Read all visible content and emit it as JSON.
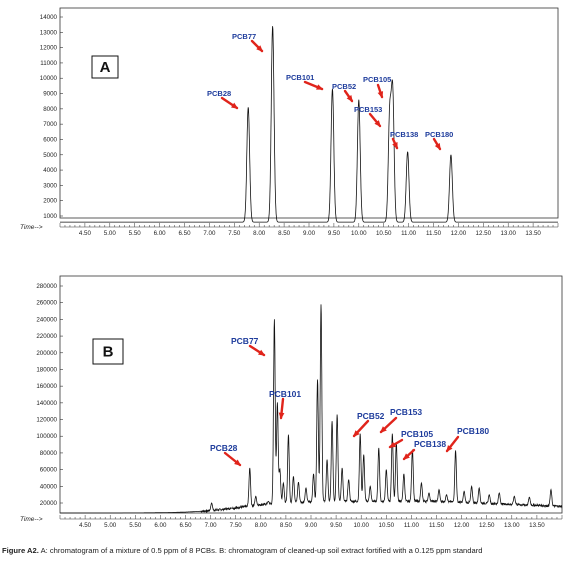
{
  "caption": {
    "label": "Figure A2.",
    "text": "A: chromatogram of a mixture of 0.5 ppm of 8 PCBs. B: chromatogram of cleaned-up soil extract fortified with a 0.125 ppm standard"
  },
  "colors": {
    "arrow": "#e0241b",
    "label": "#1e3c9c",
    "trace": "#111111",
    "frame": "#333333"
  },
  "chart_data": [
    {
      "type": "line",
      "panel_label": "A",
      "x_axis_label": "Time-->",
      "xlim": [
        4.0,
        14.0
      ],
      "x_ticks": [
        "4.50",
        "5.00",
        "5.50",
        "6.00",
        "6.50",
        "7.00",
        "7.50",
        "8.00",
        "8.50",
        "9.00",
        "9.50",
        "10.00",
        "10.50",
        "11.00",
        "11.50",
        "12.00",
        "12.50",
        "13.00",
        "13.50"
      ],
      "ylim": [
        0,
        14400
      ],
      "y_ticks": [
        "1000",
        "2000",
        "3000",
        "4000",
        "5000",
        "6000",
        "7000",
        "8000",
        "9000",
        "10000",
        "11000",
        "12000",
        "13000",
        "14000"
      ],
      "baseline": 600,
      "peaks": [
        {
          "name": "PCB28",
          "rt": 7.78,
          "height": 8100
        },
        {
          "name": "PCB77",
          "rt": 8.27,
          "height": 13400
        },
        {
          "name": "PCB101",
          "rt": 9.47,
          "height": 9300
        },
        {
          "name": "PCB52",
          "rt": 10.0,
          "height": 8600
        },
        {
          "name": "PCB153",
          "rt": 10.62,
          "height": 7500
        },
        {
          "name": "PCB105",
          "rt": 10.68,
          "height": 9000
        },
        {
          "name": "PCB138",
          "rt": 10.98,
          "height": 5200
        },
        {
          "name": "PCB180",
          "rt": 11.85,
          "height": 5000
        }
      ]
    },
    {
      "type": "line",
      "panel_label": "B",
      "x_axis_label": "Time-->",
      "xlim": [
        4.0,
        14.0
      ],
      "x_ticks": [
        "4.50",
        "5.00",
        "5.50",
        "6.00",
        "6.50",
        "7.00",
        "7.50",
        "8.00",
        "8.50",
        "9.00",
        "9.50",
        "10.00",
        "10.50",
        "11.00",
        "11.50",
        "12.00",
        "12.50",
        "13.00",
        "13.50"
      ],
      "ylim": [
        4000,
        288000
      ],
      "y_ticks": [
        "20000",
        "40000",
        "60000",
        "80000",
        "100000",
        "120000",
        "140000",
        "160000",
        "180000",
        "200000",
        "220000",
        "240000",
        "260000",
        "280000"
      ],
      "labelled_peaks": [
        {
          "name": "PCB28",
          "rt": 7.78,
          "height": 62000
        },
        {
          "name": "PCB77",
          "rt": 8.27,
          "height": 240000
        },
        {
          "name": "PCB101",
          "rt": 8.55,
          "height": 102000
        },
        {
          "name": "PCB52",
          "rt": 9.98,
          "height": 103000
        },
        {
          "name": "PCB153",
          "rt": 10.62,
          "height": 103000
        },
        {
          "name": "PCB105",
          "rt": 10.7,
          "height": 92000
        },
        {
          "name": "PCB138",
          "rt": 11.02,
          "height": 84000
        },
        {
          "name": "PCB180",
          "rt": 11.88,
          "height": 83000
        }
      ],
      "other_peaks": [
        {
          "rt": 7.02,
          "height": 20000
        },
        {
          "rt": 7.42,
          "height": 14000
        },
        {
          "rt": 7.9,
          "height": 28000
        },
        {
          "rt": 8.15,
          "height": 22000
        },
        {
          "rt": 8.33,
          "height": 140000
        },
        {
          "rt": 8.38,
          "height": 60000
        },
        {
          "rt": 8.45,
          "height": 44000
        },
        {
          "rt": 8.65,
          "height": 52000
        },
        {
          "rt": 8.75,
          "height": 45000
        },
        {
          "rt": 8.9,
          "height": 38000
        },
        {
          "rt": 9.05,
          "height": 55000
        },
        {
          "rt": 9.13,
          "height": 168000
        },
        {
          "rt": 9.2,
          "height": 258000
        },
        {
          "rt": 9.32,
          "height": 72000
        },
        {
          "rt": 9.42,
          "height": 118000
        },
        {
          "rt": 9.52,
          "height": 126000
        },
        {
          "rt": 9.62,
          "height": 62000
        },
        {
          "rt": 9.75,
          "height": 48000
        },
        {
          "rt": 10.05,
          "height": 78000
        },
        {
          "rt": 10.18,
          "height": 40000
        },
        {
          "rt": 10.35,
          "height": 86000
        },
        {
          "rt": 10.5,
          "height": 60000
        },
        {
          "rt": 10.85,
          "height": 55000
        },
        {
          "rt": 11.2,
          "height": 44000
        },
        {
          "rt": 11.35,
          "height": 32000
        },
        {
          "rt": 11.55,
          "height": 36000
        },
        {
          "rt": 11.7,
          "height": 30000
        },
        {
          "rt": 12.05,
          "height": 34000
        },
        {
          "rt": 12.2,
          "height": 40000
        },
        {
          "rt": 12.35,
          "height": 38000
        },
        {
          "rt": 12.55,
          "height": 30000
        },
        {
          "rt": 12.75,
          "height": 32000
        },
        {
          "rt": 13.05,
          "height": 28000
        },
        {
          "rt": 13.35,
          "height": 27000
        },
        {
          "rt": 13.78,
          "height": 36000
        }
      ]
    }
  ]
}
